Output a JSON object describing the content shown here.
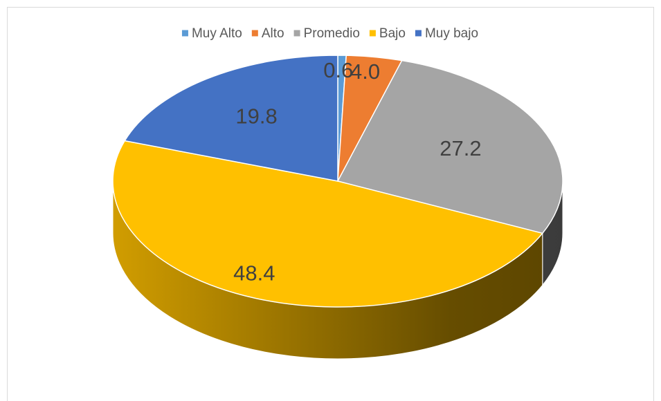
{
  "chart_data": {
    "type": "pie",
    "categories": [
      "Muy Alto",
      "Alto",
      "Promedio",
      "Bajo",
      "Muy bajo"
    ],
    "values": [
      0.6,
      4.0,
      27.2,
      48.4,
      19.8
    ],
    "value_labels": [
      "0.6",
      "4.0",
      "27.2",
      "48.4",
      "19.8"
    ],
    "colors": [
      "#5B9BD5",
      "#ED7D31",
      "#A5A5A5",
      "#FFC000",
      "#4472C4"
    ],
    "legend": "top"
  }
}
